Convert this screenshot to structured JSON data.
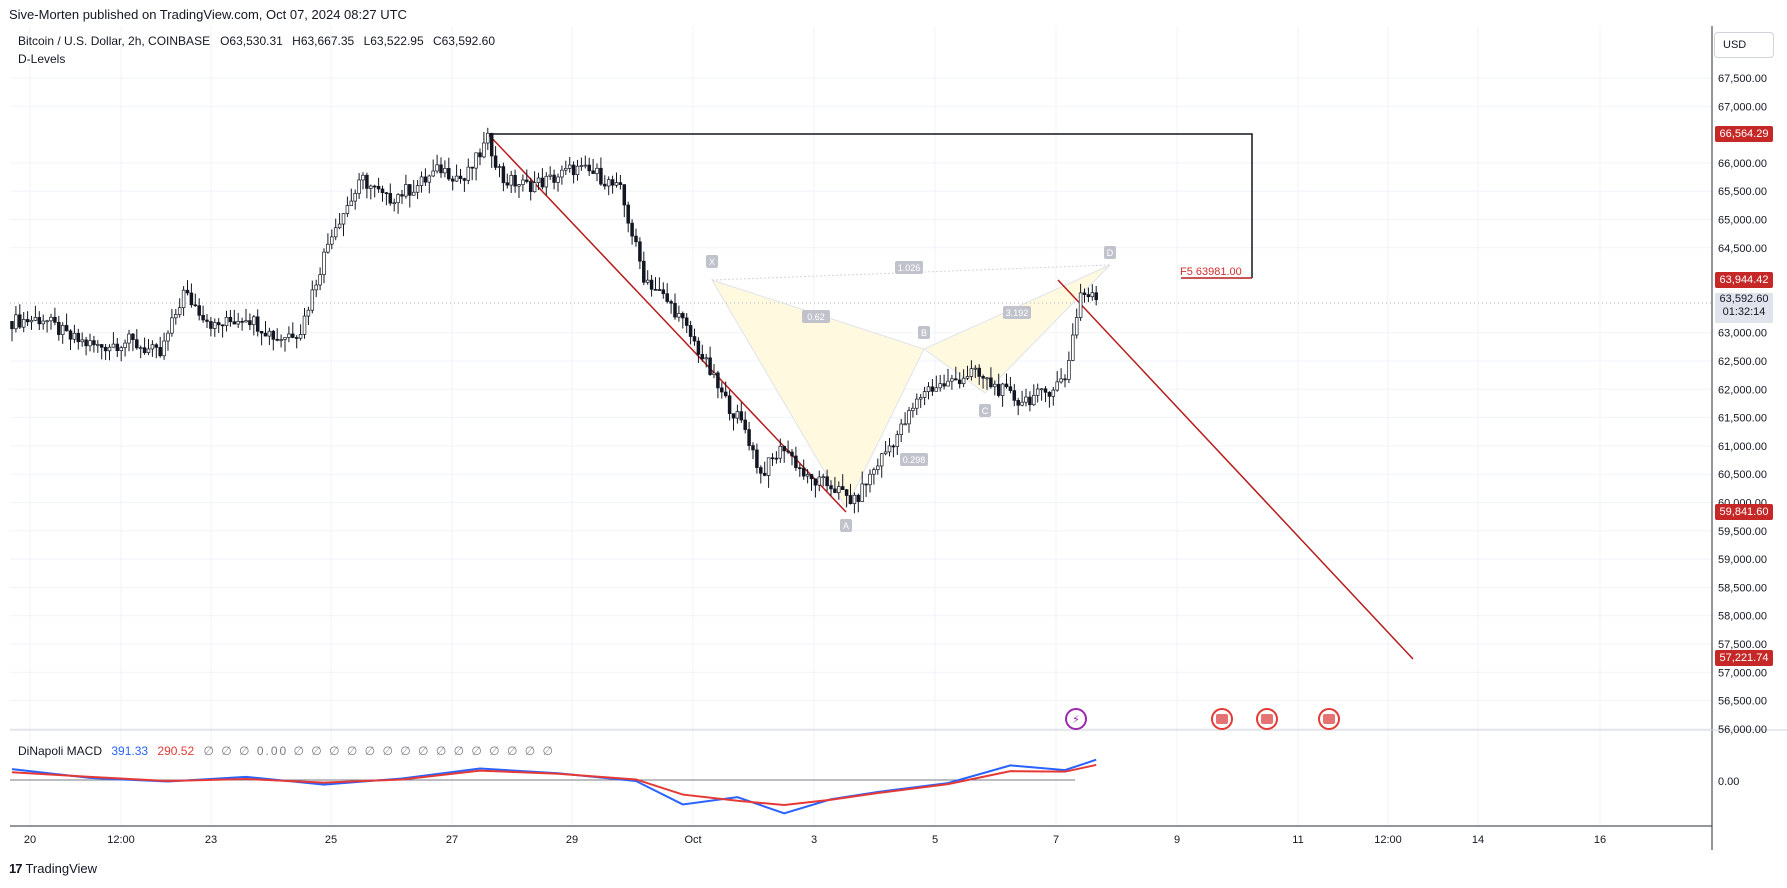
{
  "header": {
    "publisher": "Sive-Morten published on TradingView.com, Oct 07, 2024 08:27 UTC",
    "symbol": "Bitcoin / U.S. Dollar, 2h, COINBASE",
    "ohlc": {
      "o": "O63,530.31",
      "h": "H63,667.35",
      "l": "L63,522.95",
      "c": "C63,592.60"
    },
    "indicator": "D-Levels"
  },
  "currency": "USD",
  "footer": {
    "logo": "17",
    "brand": "TradingView"
  },
  "macd": {
    "name": "DiNapoli MACD",
    "v1": "391.33",
    "v2": "290.52",
    "zeros": "∅ ∅ ∅ 0.00 ∅ ∅ ∅ ∅ ∅ ∅ ∅ ∅ ∅ ∅ ∅ ∅ ∅ ∅ ∅",
    "zero_label": "0.00"
  },
  "price_tags": {
    "high": "66,564.29",
    "target": "63,944.42",
    "last": "63,592.60",
    "countdown": "01:32:14",
    "low": "59,841.60",
    "proj": "57,221.74"
  },
  "levels": {
    "f5_label": "F5  63981.00"
  },
  "pattern": {
    "labels": {
      "X": "X",
      "A": "A",
      "B": "B",
      "C": "C",
      "D": "D"
    },
    "ratios": {
      "xd": "1.026",
      "xb": "0.62",
      "ac": "0.298",
      "bd": "3.192"
    }
  },
  "colors": {
    "up": "#ffffff",
    "down": "#131722",
    "macd_fast": "#2962ff",
    "macd_slow": "#e53935",
    "trend": "#b71c1c",
    "tag_red": "#c62828",
    "pattern_fill": "#fff9e0"
  },
  "chart_data": {
    "type": "candlestick",
    "title": "",
    "y_ticks": [
      "67,500.00",
      "67,000.00",
      "66,000.00",
      "65,500.00",
      "65,000.00",
      "64,500.00",
      "63,000.00",
      "62,500.00",
      "62,000.00",
      "61,500.00",
      "61,000.00",
      "60,500.00",
      "60,000.00",
      "59,500.00",
      "59,000.00",
      "58,500.00",
      "58,000.00",
      "57,500.00",
      "57,000.00",
      "56,500.00",
      "56,000.00"
    ],
    "x_ticks": [
      "20",
      "12:00",
      "23",
      "25",
      "27",
      "29",
      "Oct",
      "3",
      "5",
      "7",
      "9",
      "11",
      "12:00",
      "14",
      "16"
    ],
    "ylim": [
      55700,
      68300
    ],
    "price_path": [
      [
        0,
        63200
      ],
      [
        8,
        63250
      ],
      [
        15,
        62900
      ],
      [
        22,
        62750
      ],
      [
        30,
        62850
      ],
      [
        38,
        62600
      ],
      [
        44,
        63700
      ],
      [
        52,
        63100
      ],
      [
        60,
        63300
      ],
      [
        68,
        62900
      ],
      [
        74,
        63050
      ],
      [
        82,
        64800
      ],
      [
        90,
        65700
      ],
      [
        96,
        65350
      ],
      [
        104,
        65600
      ],
      [
        110,
        65900
      ],
      [
        116,
        65700
      ],
      [
        122,
        66400
      ],
      [
        126,
        65700
      ],
      [
        132,
        65600
      ],
      [
        138,
        65700
      ],
      [
        144,
        65900
      ],
      [
        150,
        65800
      ],
      [
        156,
        65500
      ],
      [
        162,
        64000
      ],
      [
        170,
        63400
      ],
      [
        176,
        62700
      ],
      [
        182,
        61900
      ],
      [
        188,
        61300
      ],
      [
        192,
        60500
      ],
      [
        198,
        61000
      ],
      [
        204,
        60400
      ],
      [
        210,
        60300
      ],
      [
        216,
        60000
      ],
      [
        222,
        60700
      ],
      [
        228,
        61300
      ],
      [
        234,
        62000
      ],
      [
        240,
        62100
      ],
      [
        246,
        62300
      ],
      [
        252,
        62050
      ],
      [
        258,
        61800
      ],
      [
        264,
        61900
      ],
      [
        270,
        62200
      ],
      [
        274,
        63700
      ],
      [
        278,
        63600
      ]
    ],
    "macd_fast": [
      [
        0,
        210
      ],
      [
        20,
        40
      ],
      [
        40,
        -30
      ],
      [
        60,
        60
      ],
      [
        80,
        -90
      ],
      [
        100,
        30
      ],
      [
        120,
        220
      ],
      [
        140,
        130
      ],
      [
        160,
        -20
      ],
      [
        172,
        -470
      ],
      [
        186,
        -330
      ],
      [
        198,
        -640
      ],
      [
        210,
        -370
      ],
      [
        222,
        -230
      ],
      [
        240,
        -60
      ],
      [
        256,
        280
      ],
      [
        270,
        190
      ],
      [
        278,
        390
      ]
    ],
    "macd_slow": [
      [
        0,
        150
      ],
      [
        20,
        60
      ],
      [
        40,
        -20
      ],
      [
        60,
        20
      ],
      [
        80,
        -50
      ],
      [
        100,
        10
      ],
      [
        120,
        180
      ],
      [
        140,
        120
      ],
      [
        160,
        10
      ],
      [
        172,
        -280
      ],
      [
        186,
        -400
      ],
      [
        198,
        -480
      ],
      [
        210,
        -380
      ],
      [
        222,
        -250
      ],
      [
        240,
        -80
      ],
      [
        256,
        170
      ],
      [
        270,
        160
      ],
      [
        278,
        290
      ]
    ]
  }
}
